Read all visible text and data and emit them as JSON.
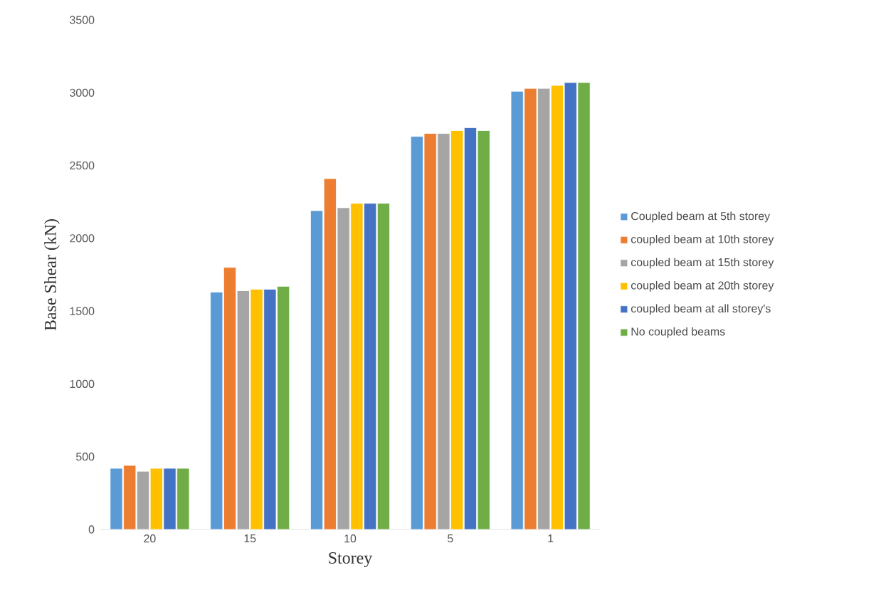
{
  "chart_data": {
    "type": "bar",
    "xlabel": "Storey",
    "ylabel": "Base Shear (kN)",
    "categories": [
      "20",
      "15",
      "10",
      "5",
      "1"
    ],
    "series": [
      {
        "name": "Coupled beam at 5th storey",
        "color": "#5b9bd5",
        "values": [
          420,
          1630,
          2190,
          2700,
          3010
        ]
      },
      {
        "name": "coupled beam at 10th storey",
        "color": "#ed7d31",
        "values": [
          440,
          1800,
          2410,
          2720,
          3030
        ]
      },
      {
        "name": "coupled beam at 15th storey",
        "color": "#a5a5a5",
        "values": [
          400,
          1640,
          2210,
          2720,
          3030
        ]
      },
      {
        "name": "coupled beam at 20th storey",
        "color": "#ffc000",
        "values": [
          420,
          1650,
          2240,
          2740,
          3050
        ]
      },
      {
        "name": "coupled beam at all storey's",
        "color": "#4472c4",
        "values": [
          420,
          1650,
          2240,
          2760,
          3070
        ]
      },
      {
        "name": "No coupled beams",
        "color": "#70ad47",
        "values": [
          420,
          1670,
          2240,
          2740,
          3070
        ]
      }
    ],
    "ylim": [
      0,
      3500
    ],
    "yticks": [
      0,
      500,
      1000,
      1500,
      2000,
      2500,
      3000,
      3500
    ],
    "legend": "right"
  }
}
